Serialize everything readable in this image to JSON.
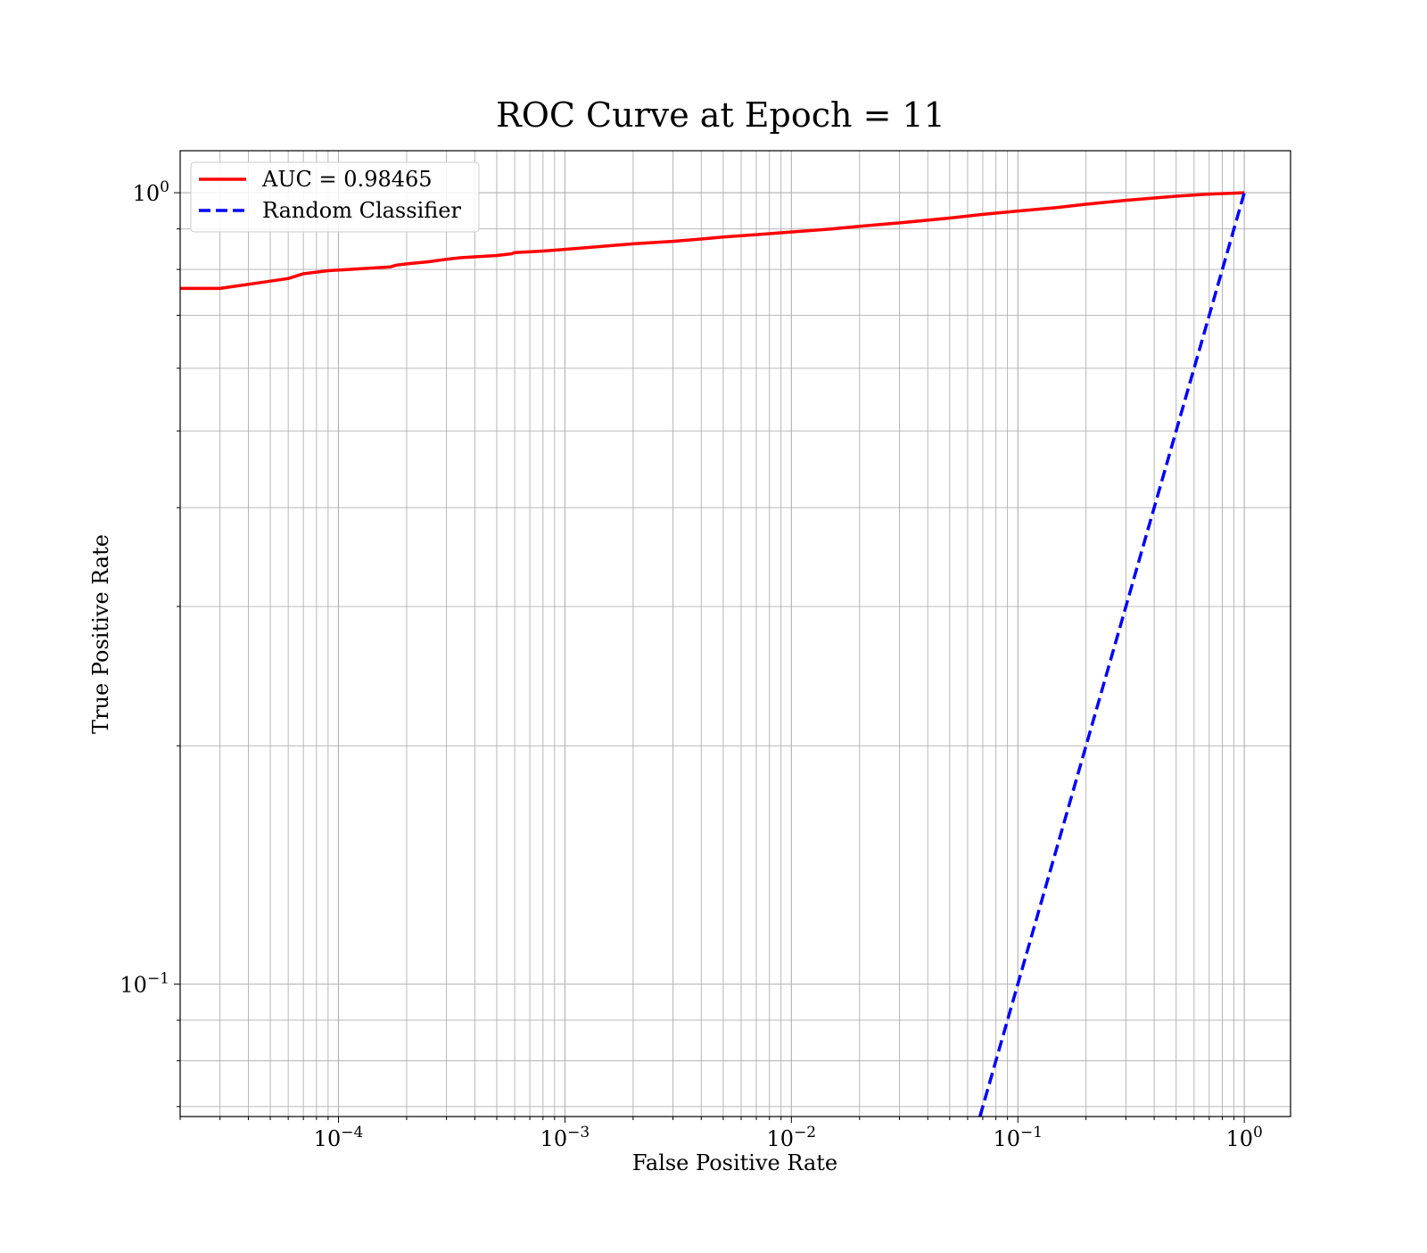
{
  "chart_data": {
    "type": "line",
    "title": "ROC Curve at Epoch = 11",
    "xlabel": "False Positive Rate",
    "ylabel": "True Positive Rate",
    "xscale": "log",
    "yscale": "log",
    "xlim": [
      2e-05,
      1.6
    ],
    "ylim": [
      0.068,
      1.13
    ],
    "grid": "on (major and minor)",
    "legend_position": "upper-left",
    "x_ticks": [
      {
        "value": 0.0001,
        "base": "10",
        "exp": "−4"
      },
      {
        "value": 0.001,
        "base": "10",
        "exp": "−3"
      },
      {
        "value": 0.01,
        "base": "10",
        "exp": "−2"
      },
      {
        "value": 0.1,
        "base": "10",
        "exp": "−1"
      },
      {
        "value": 1,
        "base": "10",
        "exp": "0"
      }
    ],
    "y_ticks": [
      {
        "value": 0.1,
        "base": "10",
        "exp": "−1"
      },
      {
        "value": 1,
        "base": "10",
        "exp": "0"
      }
    ],
    "series": [
      {
        "name": "AUC = 0.98465",
        "color": "#ff0000",
        "style": "solid",
        "x": [
          2e-05,
          3e-05,
          4e-05,
          6e-05,
          7e-05,
          9e-05,
          0.00012,
          0.00017,
          0.00018,
          0.0002,
          0.00025,
          0.0003,
          0.00035,
          0.0005,
          0.00058,
          0.0006,
          0.0008,
          0.001,
          0.0015,
          0.002,
          0.003,
          0.004,
          0.005,
          0.007,
          0.01,
          0.015,
          0.02,
          0.03,
          0.05,
          0.07,
          0.1,
          0.15,
          0.2,
          0.3,
          0.5,
          0.7,
          1.0
        ],
        "y": [
          0.757,
          0.757,
          0.766,
          0.779,
          0.79,
          0.797,
          0.801,
          0.806,
          0.81,
          0.813,
          0.818,
          0.824,
          0.828,
          0.833,
          0.837,
          0.84,
          0.844,
          0.848,
          0.856,
          0.862,
          0.868,
          0.874,
          0.879,
          0.885,
          0.892,
          0.9,
          0.907,
          0.916,
          0.929,
          0.939,
          0.948,
          0.958,
          0.967,
          0.978,
          0.99,
          0.996,
          1.0
        ]
      },
      {
        "name": "Random Classifier",
        "color": "#0000ff",
        "style": "dashed",
        "x": [
          0.068,
          1.0
        ],
        "y": [
          0.068,
          1.0
        ]
      }
    ]
  }
}
